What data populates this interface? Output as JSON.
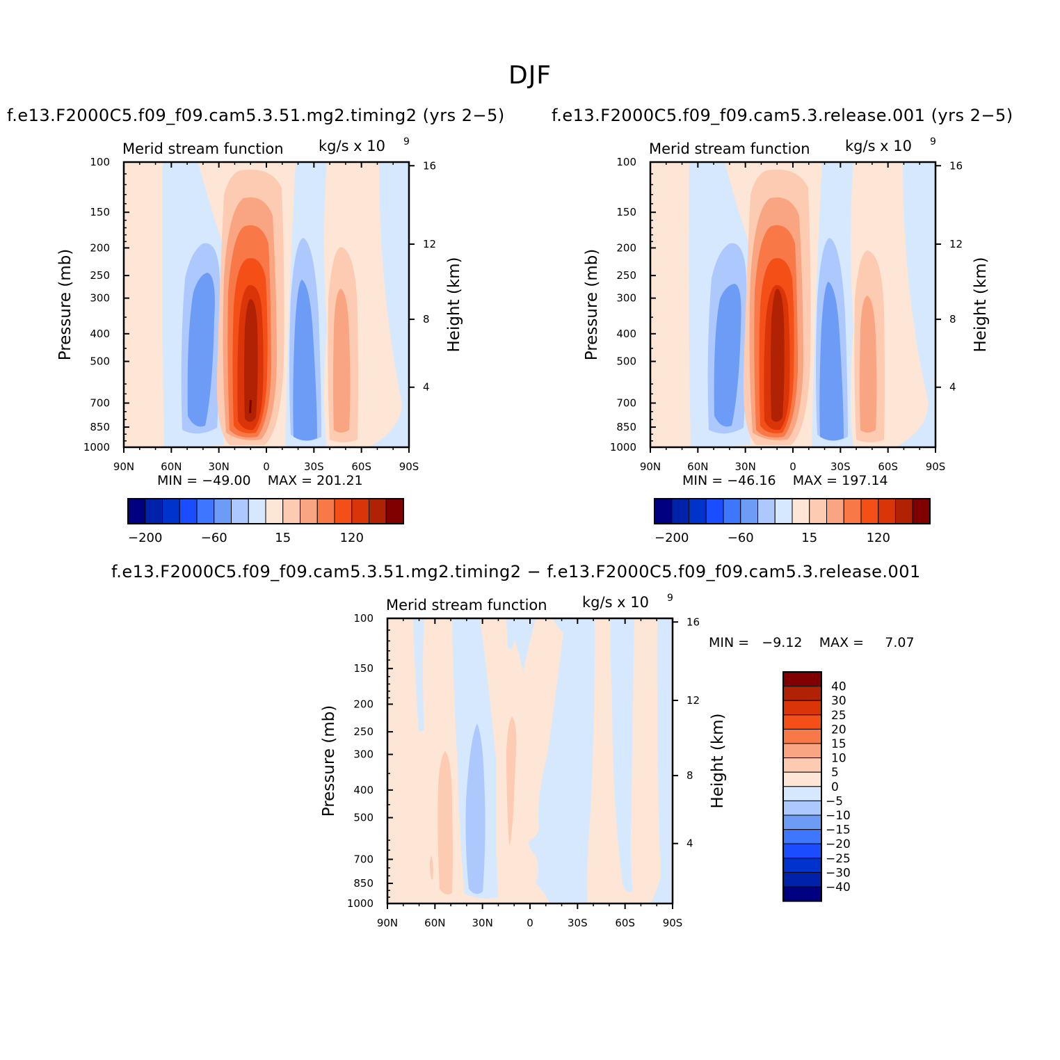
{
  "title": "DJF",
  "colors": {
    "abs_scale": [
      "#000080",
      "#0022aa",
      "#0033cc",
      "#1a4dff",
      "#3e76ff",
      "#6d9cf7",
      "#adc8fd",
      "#d6e8fd",
      "#fde6d6",
      "#fccbb2",
      "#f9a582",
      "#f87848",
      "#f54f18",
      "#d93509",
      "#b12104",
      "#800000"
    ],
    "diff_scale": [
      "#000080",
      "#0022aa",
      "#0033cc",
      "#1a4dff",
      "#3e76ff",
      "#6d9cf7",
      "#adc8fd",
      "#d6e8fd",
      "#fde6d6",
      "#fccbb2",
      "#f9a582",
      "#f87848",
      "#f54f18",
      "#d93509",
      "#b12104",
      "#800000"
    ]
  },
  "panels": [
    {
      "run_title": "f.e13.F2000C5.f09_f09.cam5.3.51.mg2.timing2 (yrs 2−5)",
      "var_label": "Merid stream function",
      "units_label": "kg/s x 10",
      "units_exp": "9",
      "min_label": "MIN =",
      "min_value": "−49.00",
      "max_label": "MAX =",
      "max_value": "201.21",
      "colorbar_labels": [
        "−200",
        "−60",
        "15",
        "120"
      ]
    },
    {
      "run_title": "f.e13.F2000C5.f09_f09.cam5.3.release.001 (yrs 2−5)",
      "var_label": "Merid stream function",
      "units_label": "kg/s x 10",
      "units_exp": "9",
      "min_label": "MIN =",
      "min_value": "−46.16",
      "max_label": "MAX =",
      "max_value": "197.14",
      "colorbar_labels": [
        "−200",
        "−60",
        "15",
        "120"
      ]
    },
    {
      "run_title": "f.e13.F2000C5.f09_f09.cam5.3.51.mg2.timing2 − f.e13.F2000C5.f09_f09.cam5.3.release.001",
      "var_label": "Merid stream function",
      "units_label": "kg/s x 10",
      "units_exp": "9",
      "min_label": "MIN =",
      "min_value": "−9.12",
      "max_label": "MAX =",
      "max_value": "7.07",
      "colorbar_labels": [
        "40",
        "30",
        "25",
        "20",
        "15",
        "10",
        "5",
        "0",
        "−5",
        "−10",
        "−15",
        "−20",
        "−25",
        "−30",
        "−40"
      ]
    }
  ],
  "chart_data": [
    {
      "type": "heatmap",
      "title": "f.e13.F2000C5.f09_f09.cam5.3.51.mg2.timing2 (yrs 2−5)",
      "xlabel": "",
      "ylabel": "Pressure (mb)",
      "y2label": "Height (km)",
      "x_ticks": [
        "90N",
        "60N",
        "30N",
        "0",
        "30S",
        "60S",
        "90S"
      ],
      "y_ticks": [
        100,
        150,
        200,
        250,
        300,
        400,
        500,
        700,
        850,
        1000
      ],
      "y2_ticks": [
        4,
        8,
        12,
        16
      ],
      "y_scale": "log",
      "min": -49.0,
      "max": 201.21,
      "features": [
        {
          "name": "northern negative cell",
          "lat": -35,
          "pressure": 450,
          "value": -45
        },
        {
          "name": "tropical positive cell",
          "lat": -10,
          "pressure": 500,
          "value": 200
        },
        {
          "name": "southern negative cell",
          "lat": 20,
          "pressure": 500,
          "value": -45
        },
        {
          "name": "southern positive cell",
          "lat": 42,
          "pressure": 450,
          "value": 35
        }
      ]
    },
    {
      "type": "heatmap",
      "title": "f.e13.F2000C5.f09_f09.cam5.3.release.001 (yrs 2−5)",
      "xlabel": "",
      "ylabel": "Pressure (mb)",
      "y2label": "Height (km)",
      "x_ticks": [
        "90N",
        "60N",
        "30N",
        "0",
        "30S",
        "60S",
        "90S"
      ],
      "y_ticks": [
        100,
        150,
        200,
        250,
        300,
        400,
        500,
        700,
        850,
        1000
      ],
      "y2_ticks": [
        4,
        8,
        12,
        16
      ],
      "y_scale": "log",
      "min": -46.16,
      "max": 197.14,
      "features": [
        {
          "name": "northern negative cell",
          "lat": -35,
          "pressure": 450,
          "value": -43
        },
        {
          "name": "tropical positive cell",
          "lat": -10,
          "pressure": 500,
          "value": 196
        },
        {
          "name": "southern negative cell",
          "lat": 20,
          "pressure": 500,
          "value": -45
        },
        {
          "name": "southern positive cell",
          "lat": 42,
          "pressure": 450,
          "value": 34
        }
      ]
    },
    {
      "type": "heatmap",
      "title": "f.e13.F2000C5.f09_f09.cam5.3.51.mg2.timing2 − f.e13.F2000C5.f09_f09.cam5.3.release.001",
      "xlabel": "",
      "ylabel": "Pressure (mb)",
      "y2label": "Height (km)",
      "x_ticks": [
        "90N",
        "60N",
        "30N",
        "0",
        "30S",
        "60S",
        "90S"
      ],
      "y_ticks": [
        100,
        150,
        200,
        250,
        300,
        400,
        500,
        700,
        850,
        1000
      ],
      "y2_ticks": [
        4,
        8,
        12,
        16
      ],
      "y_scale": "log",
      "min": -9.12,
      "max": 7.07,
      "contour_levels": [
        -40,
        -30,
        -25,
        -20,
        -15,
        -10,
        -5,
        0,
        5,
        10,
        15,
        20,
        25,
        30,
        40
      ]
    }
  ]
}
